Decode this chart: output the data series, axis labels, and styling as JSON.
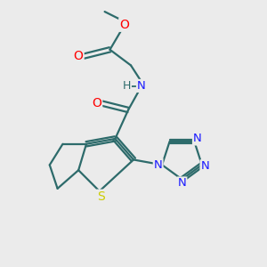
{
  "background_color": "#ebebeb",
  "bond_color": "#2d6b6b",
  "atom_colors": {
    "O": "#ff0000",
    "N": "#1a1aff",
    "S": "#cccc00",
    "H": "#2d6b6b",
    "C": "#2d6b6b"
  },
  "figsize": [
    3.0,
    3.0
  ],
  "dpi": 100
}
